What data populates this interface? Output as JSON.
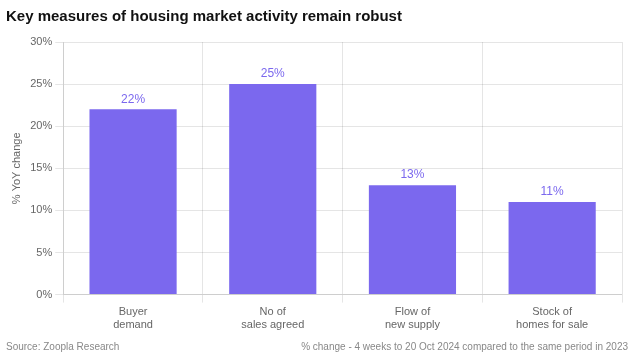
{
  "chart_data": {
    "type": "bar",
    "title": "Key measures of housing market activity remain robust",
    "categories": [
      "Buyer\ndemand",
      "No of\nsales agreed",
      "Flow of\nnew supply",
      "Stock of\nhomes for sale"
    ],
    "values": [
      22,
      25,
      13,
      11
    ],
    "value_labels": [
      "22%",
      "25%",
      "13%",
      "11%"
    ],
    "data_labels": true,
    "color": "#7B68EE",
    "ylabel": "% YoY change",
    "ylim": [
      0,
      30
    ],
    "yticks": [
      {
        "value": 0,
        "label": "0%"
      },
      {
        "value": 5,
        "label": "5%"
      },
      {
        "value": 10,
        "label": "10%"
      },
      {
        "value": 15,
        "label": "15%"
      },
      {
        "value": 20,
        "label": "20%"
      },
      {
        "value": 25,
        "label": "25%"
      },
      {
        "value": 30,
        "label": "30%"
      }
    ],
    "grid": true,
    "annotations": [
      "Source: Zoopla Research",
      "% change - 4 weeks to 20 Oct 2024 compared to the same period in 2023"
    ]
  }
}
